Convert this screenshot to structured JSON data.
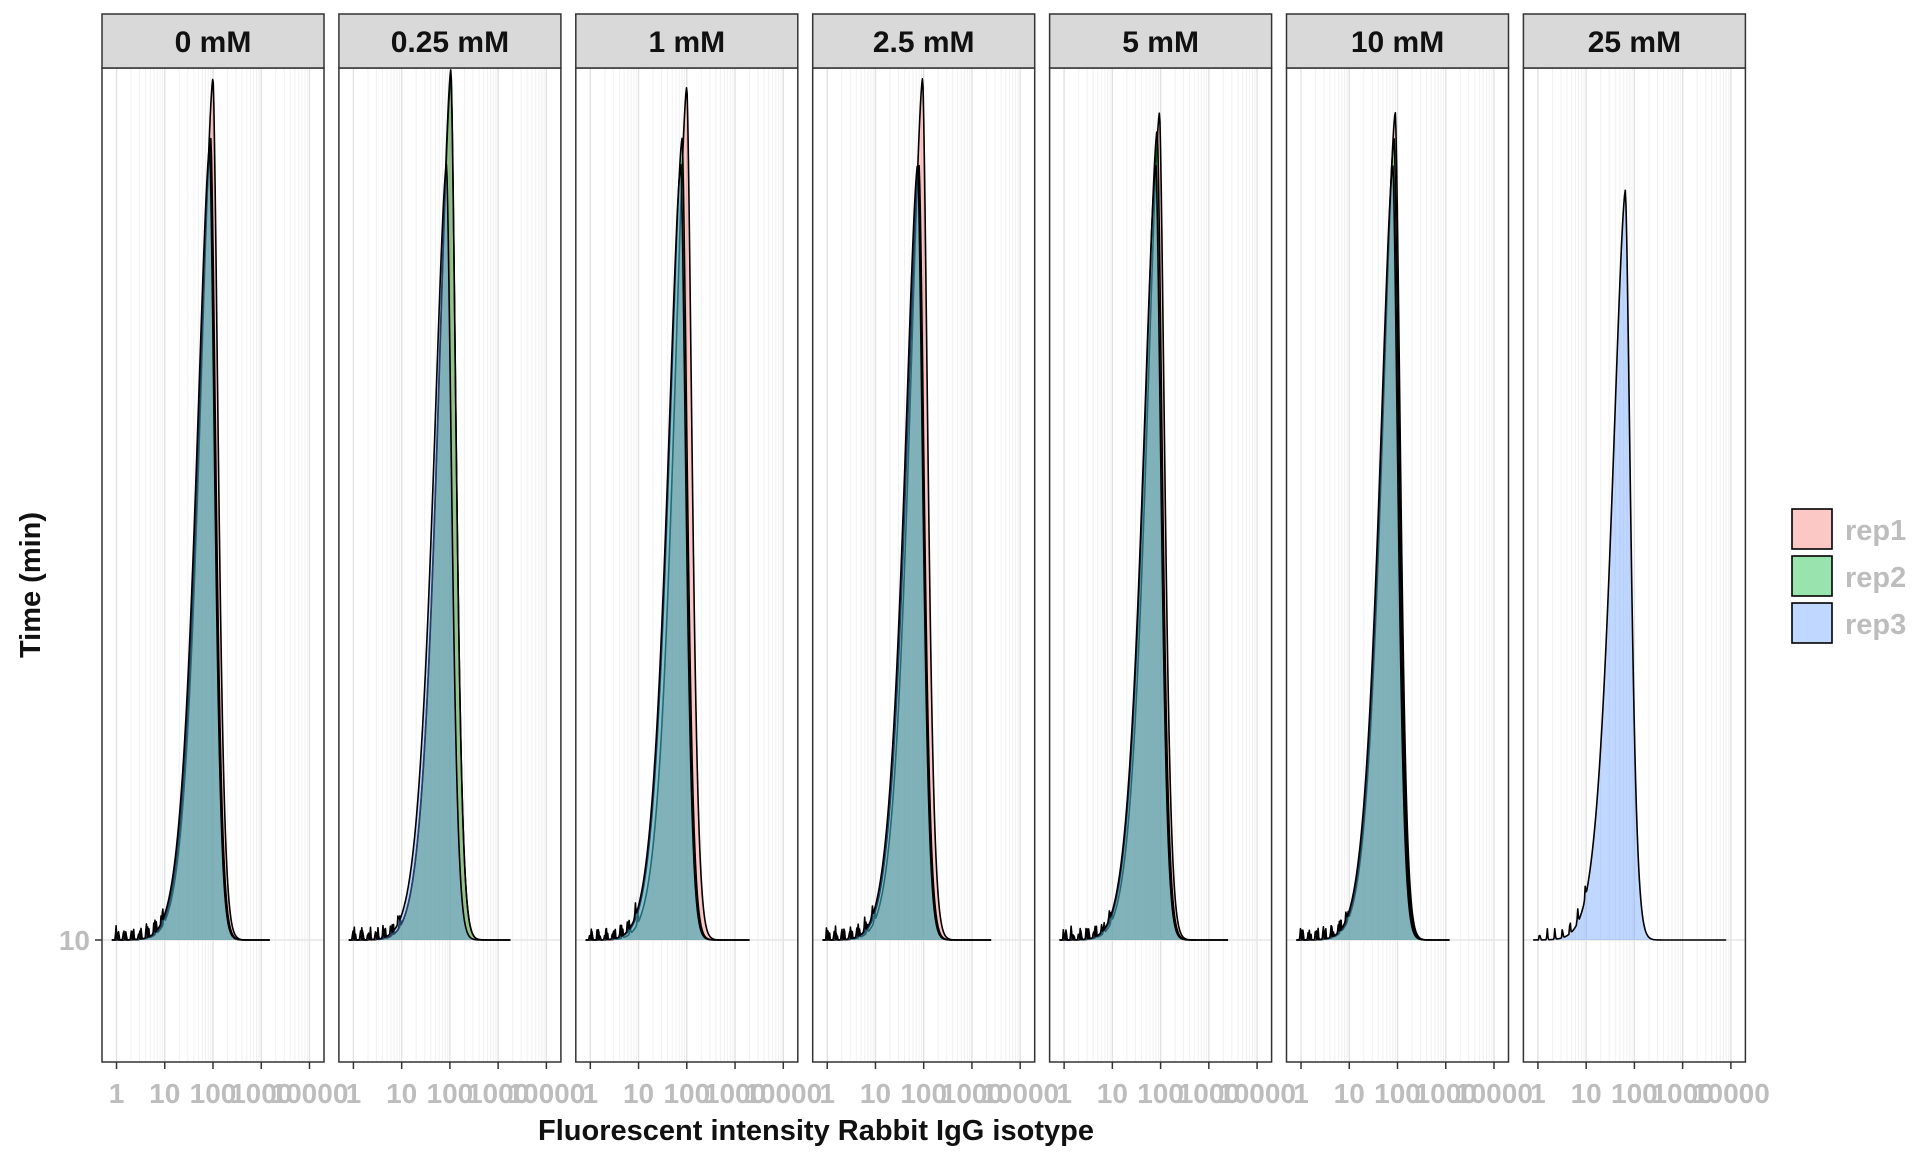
{
  "chart_data": {
    "type": "area",
    "facet_variable": "concentration",
    "facets": [
      "0 mM",
      "0.25 mM",
      "1 mM",
      "2.5 mM",
      "5 mM",
      "10 mM",
      "25 mM"
    ],
    "xlabel": "Fluorescent intensity Rabbit IgG isotype",
    "ylabel": "Time (min)",
    "x_scale": "log10",
    "x_ticks": [
      1,
      10,
      100,
      1000,
      10000
    ],
    "x_tick_labels": [
      "1",
      "10",
      "100",
      "1000",
      "10000"
    ],
    "xlim": [
      0.5,
      20000
    ],
    "y_ticks": [
      10
    ],
    "y_tick_labels": [
      "10"
    ],
    "grid": true,
    "legend": {
      "placement": "right",
      "entries": [
        {
          "name": "rep1",
          "color": "#F8766D"
        },
        {
          "name": "rep2",
          "color": "#00BA38"
        },
        {
          "name": "rep3",
          "color": "#619CFF"
        }
      ]
    },
    "series_by_facet": [
      {
        "facet": "0 mM",
        "series": [
          {
            "name": "rep1",
            "peak_x": 100,
            "peak_height": 1.0,
            "upper_x": 1500
          },
          {
            "name": "rep2",
            "peak_x": 90,
            "peak_height": 0.93,
            "upper_x": 1500
          },
          {
            "name": "rep3",
            "peak_x": 85,
            "peak_height": 0.92,
            "upper_x": 1500
          }
        ]
      },
      {
        "facet": "0.25 mM",
        "series": [
          {
            "name": "rep1",
            "peak_x": 105,
            "peak_height": 1.0,
            "upper_x": 1800
          },
          {
            "name": "rep2",
            "peak_x": 105,
            "peak_height": 1.01,
            "upper_x": 1800
          },
          {
            "name": "rep3",
            "peak_x": 85,
            "peak_height": 0.9,
            "upper_x": 1800
          }
        ]
      },
      {
        "facet": "1 mM",
        "series": [
          {
            "name": "rep1",
            "peak_x": 100,
            "peak_height": 0.99,
            "upper_x": 2000
          },
          {
            "name": "rep2",
            "peak_x": 80,
            "peak_height": 0.93,
            "upper_x": 2000
          },
          {
            "name": "rep3",
            "peak_x": 75,
            "peak_height": 0.9,
            "upper_x": 2000
          }
        ]
      },
      {
        "facet": "2.5 mM",
        "series": [
          {
            "name": "rep1",
            "peak_x": 95,
            "peak_height": 1.0,
            "upper_x": 2500
          },
          {
            "name": "rep2",
            "peak_x": 80,
            "peak_height": 0.9,
            "upper_x": 2500
          },
          {
            "name": "rep3",
            "peak_x": 75,
            "peak_height": 0.9,
            "upper_x": 2500
          }
        ]
      },
      {
        "facet": "5 mM",
        "series": [
          {
            "name": "rep1",
            "peak_x": 95,
            "peak_height": 0.96,
            "upper_x": 2500
          },
          {
            "name": "rep2",
            "peak_x": 85,
            "peak_height": 0.94,
            "upper_x": 2500
          },
          {
            "name": "rep3",
            "peak_x": 80,
            "peak_height": 0.9,
            "upper_x": 2500
          }
        ]
      },
      {
        "facet": "10 mM",
        "series": [
          {
            "name": "rep1",
            "peak_x": 90,
            "peak_height": 0.96,
            "upper_x": 1200
          },
          {
            "name": "rep2",
            "peak_x": 85,
            "peak_height": 0.93,
            "upper_x": 1200
          },
          {
            "name": "rep3",
            "peak_x": 80,
            "peak_height": 0.9,
            "upper_x": 1200
          }
        ]
      },
      {
        "facet": "25 mM",
        "series": [
          {
            "name": "rep3",
            "peak_x": 65,
            "peak_height": 0.87,
            "upper_x": 8000
          }
        ]
      }
    ]
  }
}
